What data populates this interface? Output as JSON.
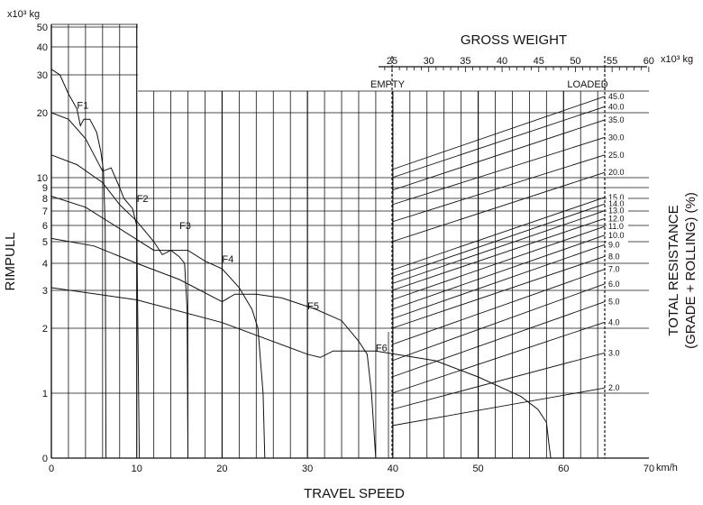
{
  "chart_data": {
    "type": "line",
    "title": "",
    "xlabel": "TRAVEL SPEED",
    "x_unit": "km/h",
    "ylabel": "RIMPULL",
    "y_unit": "x10³ kg",
    "right_axis_label_1": "TOTAL RESISTANCE",
    "right_axis_label_2": "(GRADE + ROLLING) (%)",
    "top_axis_label": "GROSS WEIGHT",
    "top_axis_unit": "x10³ kg",
    "empty_label": "EMPTY",
    "loaded_label": "LOADED",
    "x_ticks": [
      0,
      10,
      20,
      30,
      40,
      50,
      60,
      70
    ],
    "x_tick_labels": [
      "0",
      "10",
      "20",
      "30",
      "40",
      "50",
      "60",
      "70"
    ],
    "y_ticks": [
      0,
      1,
      2,
      3,
      4,
      5,
      6,
      7,
      8,
      9,
      10,
      20,
      30,
      40,
      50
    ],
    "y_tick_labels": [
      "0",
      "1",
      "2",
      "3",
      "4",
      "5",
      "6",
      "7",
      "8",
      "9",
      "10",
      "20",
      "30",
      "40",
      "50"
    ],
    "weight_ticks": [
      25,
      30,
      35,
      40,
      45,
      50,
      55,
      60
    ],
    "weight_tick_labels": [
      "25",
      "30",
      "35",
      "40",
      "45",
      "50",
      "55",
      "60"
    ],
    "empty_weight": 25,
    "loaded_weight": 54,
    "resistance_labels": [
      "45.0",
      "40.0",
      "35.0",
      "30.0",
      "25.0",
      "20.0",
      "15.0",
      "14.0",
      "13.0",
      "12.0",
      "11.0",
      "10.0",
      "9.0",
      "8.0",
      "7.0",
      "6.0",
      "5.0",
      "4.0",
      "3.0",
      "2.0"
    ],
    "resistance_values": [
      45,
      40,
      35,
      30,
      25,
      20,
      15,
      14,
      13,
      12,
      11,
      10,
      9,
      8,
      7,
      6,
      5,
      4,
      3,
      2
    ],
    "series": [
      {
        "name": "F1",
        "points": [
          [
            0,
            32
          ],
          [
            1,
            30
          ],
          [
            2,
            25
          ],
          [
            3,
            21
          ],
          [
            3.4,
            18
          ],
          [
            3.8,
            19
          ],
          [
            4.5,
            19
          ],
          [
            5.3,
            17
          ],
          [
            5.8,
            14
          ],
          [
            6.1,
            11
          ],
          [
            6.3,
            6
          ],
          [
            6.4,
            0
          ]
        ]
      },
      {
        "name": "F2",
        "points": [
          [
            0,
            20
          ],
          [
            2,
            19
          ],
          [
            4,
            16
          ],
          [
            6,
            11
          ],
          [
            7,
            11.5
          ],
          [
            8,
            9
          ],
          [
            8.5,
            8
          ],
          [
            9.5,
            7.2
          ],
          [
            10,
            6
          ],
          [
            10.3,
            0
          ]
        ]
      },
      {
        "name": "F3",
        "points": [
          [
            0,
            13.5
          ],
          [
            3,
            12
          ],
          [
            6,
            9.5
          ],
          [
            8,
            7.5
          ],
          [
            10,
            6.3
          ],
          [
            12,
            5.0
          ],
          [
            13,
            4.4
          ],
          [
            14,
            4.6
          ],
          [
            15,
            4.3
          ],
          [
            15.6,
            4.0
          ],
          [
            15.9,
            2.5
          ],
          [
            16,
            0
          ]
        ]
      },
      {
        "name": "F4",
        "points": [
          [
            0,
            8.2
          ],
          [
            4,
            7.3
          ],
          [
            8,
            5.8
          ],
          [
            12,
            4.6
          ],
          [
            14,
            4.6
          ],
          [
            16,
            4.6
          ],
          [
            18,
            4.1
          ],
          [
            20,
            3.8
          ],
          [
            22,
            3.1
          ],
          [
            23.5,
            2.5
          ],
          [
            24.2,
            2.0
          ],
          [
            24.8,
            1.0
          ],
          [
            25,
            0
          ]
        ]
      },
      {
        "name": "F5",
        "points": [
          [
            0,
            5.2
          ],
          [
            5,
            4.8
          ],
          [
            10,
            4.0
          ],
          [
            15,
            3.4
          ],
          [
            20,
            2.7
          ],
          [
            21.5,
            2.9
          ],
          [
            24,
            2.9
          ],
          [
            27,
            2.8
          ],
          [
            31,
            2.5
          ],
          [
            34,
            2.2
          ],
          [
            36,
            1.8
          ],
          [
            37,
            1.6
          ],
          [
            37.5,
            1.0
          ],
          [
            38,
            0
          ]
        ]
      },
      {
        "name": "F6",
        "points": [
          [
            0,
            3.1
          ],
          [
            10,
            2.75
          ],
          [
            20,
            2.15
          ],
          [
            30,
            1.6
          ],
          [
            31.5,
            1.55
          ],
          [
            33,
            1.65
          ],
          [
            38,
            1.65
          ],
          [
            45,
            1.5
          ],
          [
            50,
            1.25
          ],
          [
            55,
            0.95
          ],
          [
            57,
            0.75
          ],
          [
            58,
            0.55
          ],
          [
            58.3,
            0.2
          ],
          [
            58.5,
            0
          ]
        ]
      }
    ]
  }
}
